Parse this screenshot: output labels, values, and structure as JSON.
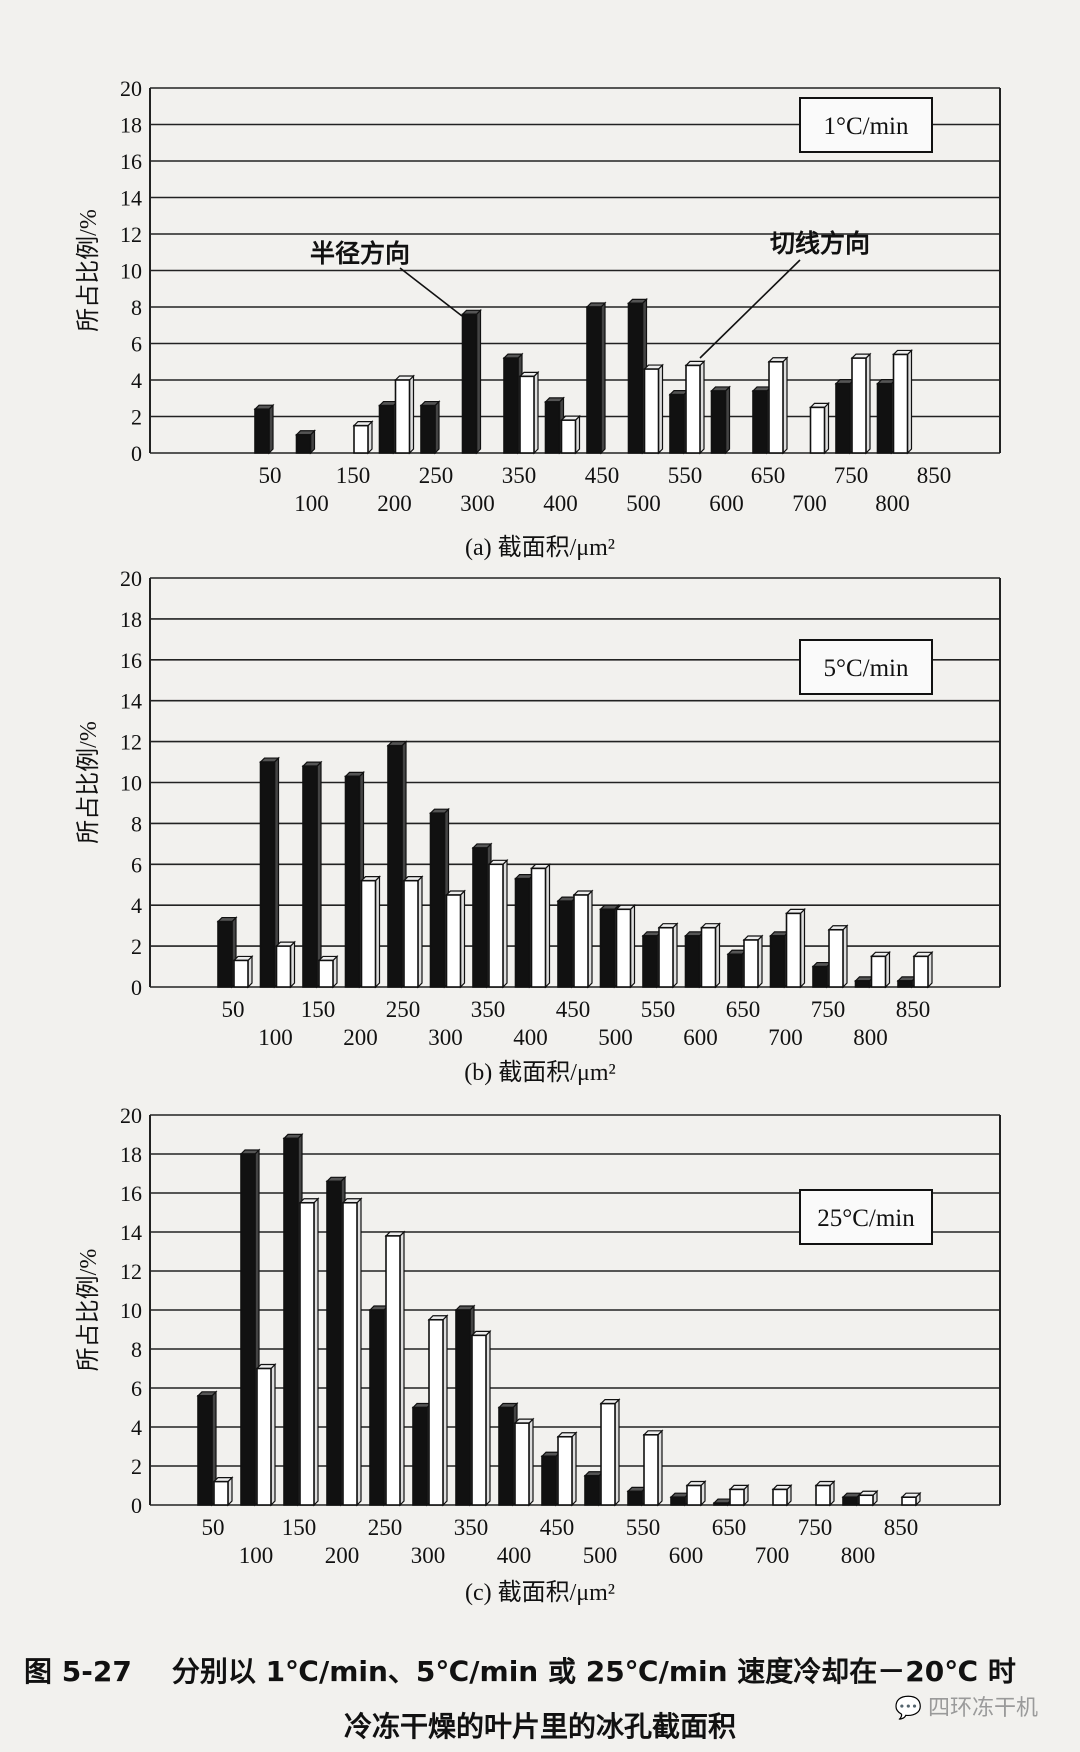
{
  "categories": [
    "50",
    "100",
    "150",
    "200",
    "250",
    "300",
    "350",
    "400",
    "450",
    "500",
    "550",
    "600",
    "650",
    "700",
    "750",
    "800",
    "850"
  ],
  "charts": [
    {
      "id": "a",
      "type": "bar",
      "legend": "1°C/min",
      "xlabel": "(a) 截面积/μm²",
      "ylabel": "所占比例/%",
      "ylim": [
        0,
        20
      ],
      "yticks": [
        "0",
        "2",
        "4",
        "6",
        "8",
        "10",
        "12",
        "14",
        "16",
        "18",
        "20"
      ],
      "annotations": [
        "半径方向",
        "切线方向"
      ],
      "series": [
        {
          "name": "半径方向",
          "color": "#111111",
          "values": [
            2.4,
            1.0,
            0,
            2.6,
            2.6,
            7.6,
            5.2,
            2.8,
            8.0,
            8.2,
            3.2,
            3.4,
            3.4,
            0,
            3.8,
            3.8,
            0
          ]
        },
        {
          "name": "切线方向",
          "color": "#ffffff",
          "values": [
            0,
            0,
            1.5,
            4.0,
            0,
            0,
            4.2,
            1.8,
            0,
            4.6,
            4.8,
            0,
            5.0,
            2.5,
            5.2,
            5.4,
            0
          ]
        }
      ]
    },
    {
      "id": "b",
      "type": "bar",
      "legend": "5°C/min",
      "xlabel": "(b) 截面积/μm²",
      "ylabel": "所占比例/%",
      "ylim": [
        0,
        20
      ],
      "yticks": [
        "0",
        "2",
        "4",
        "6",
        "8",
        "10",
        "12",
        "14",
        "16",
        "18",
        "20"
      ],
      "series": [
        {
          "name": "半径方向",
          "color": "#111111",
          "values": [
            3.2,
            11.0,
            10.8,
            10.3,
            11.8,
            8.5,
            6.8,
            5.3,
            4.2,
            3.8,
            2.5,
            2.5,
            1.6,
            2.5,
            1.0,
            0.3,
            0.3
          ]
        },
        {
          "name": "切线方向",
          "color": "#ffffff",
          "values": [
            1.3,
            2.0,
            1.3,
            5.2,
            5.2,
            4.5,
            6.0,
            5.8,
            4.5,
            3.8,
            2.9,
            2.9,
            2.3,
            3.6,
            2.8,
            1.5,
            1.5
          ]
        }
      ]
    },
    {
      "id": "c",
      "type": "bar",
      "legend": "25°C/min",
      "xlabel": "(c) 截面积/μm²",
      "ylabel": "所占比例/%",
      "ylim": [
        0,
        20
      ],
      "yticks": [
        "0",
        "2",
        "4",
        "6",
        "8",
        "10",
        "12",
        "14",
        "16",
        "18",
        "20"
      ],
      "series": [
        {
          "name": "半径方向",
          "color": "#111111",
          "values": [
            5.6,
            18.0,
            18.8,
            16.6,
            10.0,
            5.0,
            10.0,
            5.0,
            2.5,
            1.5,
            0.7,
            0.4,
            0.1,
            0,
            0,
            0.4,
            0
          ]
        },
        {
          "name": "切线方向",
          "color": "#ffffff",
          "values": [
            1.2,
            7.0,
            15.5,
            15.5,
            13.8,
            9.5,
            8.7,
            4.2,
            3.5,
            5.2,
            3.6,
            1.0,
            0.8,
            0.8,
            1.0,
            0.5,
            0.4
          ]
        }
      ]
    }
  ],
  "caption": {
    "figure_no": "图 5-27",
    "line1": "分别以 1℃/min、5℃/min 或 25℃/min 速度冷却在－20℃ 时",
    "line2": "冷冻干燥的叶片里的冰孔截面积"
  },
  "watermark": {
    "icon": "wechat-icon",
    "text": "四环冻干机"
  }
}
